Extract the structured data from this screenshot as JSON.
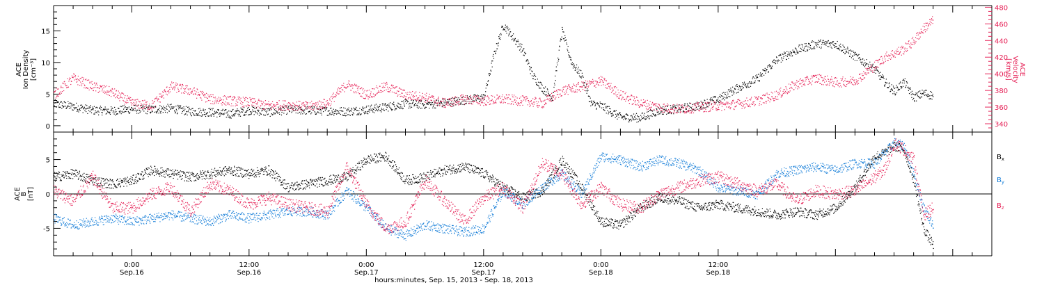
{
  "colors": {
    "black": "#000000",
    "velocity": "#e6265a",
    "by": "#1a80d9",
    "bz": "#e6265a"
  },
  "chart_data": [
    {
      "type": "scatter",
      "panel": "top",
      "x_range_hours": [
        -8,
        88
      ],
      "ylabel_left": [
        "ACE",
        "Ion Density",
        "[cm⁻³]"
      ],
      "ylabel_right": [
        "ACE",
        "Velocity",
        "[km/s]"
      ],
      "ylim_left": [
        -1,
        19
      ],
      "ylim_right": [
        330,
        482
      ],
      "yticks_left": [
        0,
        5,
        10,
        15
      ],
      "yticks_right": [
        340,
        360,
        380,
        400,
        420,
        440,
        460,
        480
      ],
      "series": [
        {
          "name": "Ion Density",
          "axis": "left",
          "x": [
            -8,
            -6,
            -4,
            -2,
            0,
            2,
            4,
            6,
            8,
            10,
            12,
            14,
            16,
            18,
            20,
            22,
            24,
            26,
            28,
            30,
            32,
            34,
            36,
            37,
            38,
            39,
            40,
            41,
            42,
            43,
            44,
            45,
            46,
            47,
            48,
            50,
            52,
            54,
            56,
            57,
            58,
            59,
            60,
            61,
            62,
            64,
            66,
            68,
            70,
            72,
            74,
            76,
            77,
            78,
            79,
            80,
            81,
            82
          ],
          "y": [
            3.5,
            3.1,
            2.5,
            2.4,
            2.7,
            2.6,
            2.8,
            2.3,
            2.2,
            1.9,
            2.5,
            2.2,
            2.6,
            2.5,
            2.4,
            2.3,
            2.6,
            3.0,
            3.5,
            3.4,
            3.7,
            4.1,
            4.5,
            11,
            16,
            14,
            12,
            8,
            6,
            4.5,
            15,
            10,
            8,
            3.5,
            3.2,
            1.4,
            1.3,
            2.5,
            2.7,
            3.0,
            3.2,
            3.8,
            4.2,
            5.2,
            6.0,
            7.5,
            10.5,
            12,
            13,
            13,
            11,
            9,
            7,
            5.5,
            7,
            4.5,
            5.2,
            4.8
          ]
        },
        {
          "name": "Velocity",
          "axis": "right",
          "x": [
            -8,
            -6,
            -4,
            -2,
            0,
            2,
            4,
            6,
            8,
            10,
            12,
            14,
            16,
            18,
            20,
            22,
            24,
            26,
            28,
            30,
            32,
            34,
            36,
            38,
            40,
            42,
            44,
            46,
            48,
            50,
            52,
            54,
            56,
            58,
            60,
            62,
            64,
            66,
            68,
            70,
            72,
            74,
            76,
            77,
            78,
            79,
            80,
            81,
            82
          ],
          "y": [
            375,
            395,
            385,
            378,
            365,
            362,
            385,
            380,
            370,
            368,
            366,
            362,
            363,
            361,
            365,
            388,
            375,
            385,
            375,
            372,
            365,
            370,
            368,
            370,
            368,
            365,
            380,
            385,
            392,
            375,
            365,
            360,
            358,
            360,
            362,
            364,
            368,
            375,
            388,
            395,
            390,
            392,
            410,
            420,
            425,
            430,
            440,
            455,
            465
          ]
        }
      ]
    },
    {
      "type": "scatter",
      "panel": "bottom",
      "x_range_hours": [
        -8,
        88
      ],
      "ylabel_left": [
        "ACE",
        "B",
        "[nT]"
      ],
      "ylim": [
        -9,
        9
      ],
      "yticks": [
        -5,
        0,
        5
      ],
      "series": [
        {
          "name": "Bx",
          "x": [
            -8,
            -6,
            -4,
            -2,
            0,
            2,
            4,
            6,
            8,
            10,
            12,
            14,
            16,
            18,
            20,
            22,
            24,
            26,
            28,
            30,
            32,
            34,
            36,
            38,
            40,
            42,
            44,
            46,
            48,
            50,
            52,
            54,
            56,
            58,
            60,
            62,
            64,
            66,
            68,
            70,
            72,
            74,
            76,
            77,
            78,
            79,
            80,
            81,
            82
          ],
          "y": [
            2.5,
            3.0,
            2.0,
            1.5,
            2.0,
            3.5,
            3.0,
            2.5,
            3.0,
            3.5,
            3.0,
            3.5,
            1.0,
            1.5,
            2.0,
            2.5,
            5.0,
            5.5,
            2.0,
            2.5,
            3.5,
            4.0,
            3.0,
            1.0,
            -0.5,
            0.5,
            5.0,
            1.0,
            -4.0,
            -4.5,
            -2.0,
            -0.5,
            -1.0,
            -2.0,
            -1.5,
            -2.0,
            -2.5,
            -3.0,
            -2.5,
            -3.0,
            -2.0,
            1.0,
            5.5,
            6.0,
            7.0,
            6.5,
            2.0,
            -5.0,
            -7.5
          ]
        },
        {
          "name": "By",
          "x": [
            -8,
            -6,
            -4,
            -2,
            0,
            2,
            4,
            6,
            8,
            10,
            12,
            14,
            16,
            18,
            20,
            22,
            24,
            26,
            28,
            30,
            32,
            34,
            36,
            38,
            40,
            42,
            44,
            46,
            48,
            50,
            52,
            54,
            56,
            58,
            60,
            62,
            64,
            66,
            68,
            70,
            72,
            74,
            76,
            77,
            78,
            79,
            80,
            81,
            82
          ],
          "y": [
            -3.5,
            -4.5,
            -4.0,
            -3.5,
            -4.0,
            -3.5,
            -3.0,
            -3.5,
            -4.0,
            -3.0,
            -3.5,
            -3.0,
            -2.5,
            -2.5,
            -3.0,
            0.5,
            -2.0,
            -5.0,
            -6.0,
            -4.5,
            -5.0,
            -5.5,
            -5.0,
            0.5,
            -1.5,
            1.0,
            3.0,
            0.0,
            5.5,
            5.0,
            4.0,
            5.0,
            4.5,
            3.5,
            1.0,
            0.5,
            0.0,
            3.0,
            3.5,
            4.0,
            3.5,
            4.5,
            4.5,
            6.0,
            7.5,
            7.0,
            3.0,
            -2.0,
            -4.5
          ]
        },
        {
          "name": "Bz",
          "x": [
            -8,
            -6,
            -4,
            -2,
            0,
            2,
            4,
            6,
            8,
            10,
            12,
            14,
            16,
            18,
            20,
            22,
            24,
            26,
            28,
            30,
            32,
            34,
            36,
            38,
            40,
            42,
            44,
            46,
            48,
            50,
            52,
            54,
            56,
            58,
            60,
            62,
            64,
            66,
            68,
            70,
            72,
            74,
            76,
            77,
            78,
            79,
            80,
            81,
            82
          ],
          "y": [
            0.5,
            -1.0,
            2.5,
            -2.0,
            -2.0,
            0.0,
            1.0,
            -2.5,
            1.5,
            0.5,
            -1.5,
            -0.5,
            -1.5,
            -2.0,
            -2.5,
            4.0,
            -1.5,
            -5.0,
            -4.0,
            2.0,
            -1.0,
            -4.0,
            -0.5,
            1.0,
            -2.0,
            4.5,
            3.0,
            -1.5,
            1.0,
            -1.5,
            -2.0,
            0.0,
            1.0,
            2.0,
            2.5,
            1.5,
            0.5,
            1.5,
            -1.0,
            0.5,
            0.0,
            0.5,
            2.5,
            3.5,
            7.5,
            6.5,
            5.0,
            -3.0,
            -2.0
          ]
        }
      ]
    }
  ],
  "legend": {
    "bx": "B",
    "bx_sub": "x",
    "by": "B",
    "by_sub": "y",
    "bz": "B",
    "bz_sub": "z"
  },
  "time_axis": {
    "ticks": [
      {
        "hour": 0,
        "time": "0:00",
        "date": "Sep.16"
      },
      {
        "hour": 12,
        "time": "12:00",
        "date": "Sep.16"
      },
      {
        "hour": 24,
        "time": "0:00",
        "date": "Sep.17"
      },
      {
        "hour": 36,
        "time": "12:00",
        "date": "Sep.17"
      },
      {
        "hour": 48,
        "time": "0:00",
        "date": "Sep.18"
      },
      {
        "hour": 60,
        "time": "12:00",
        "date": "Sep.18"
      }
    ],
    "xlabel": "hours:minutes, Sep. 15, 2013 - Sep. 18, 2013"
  }
}
